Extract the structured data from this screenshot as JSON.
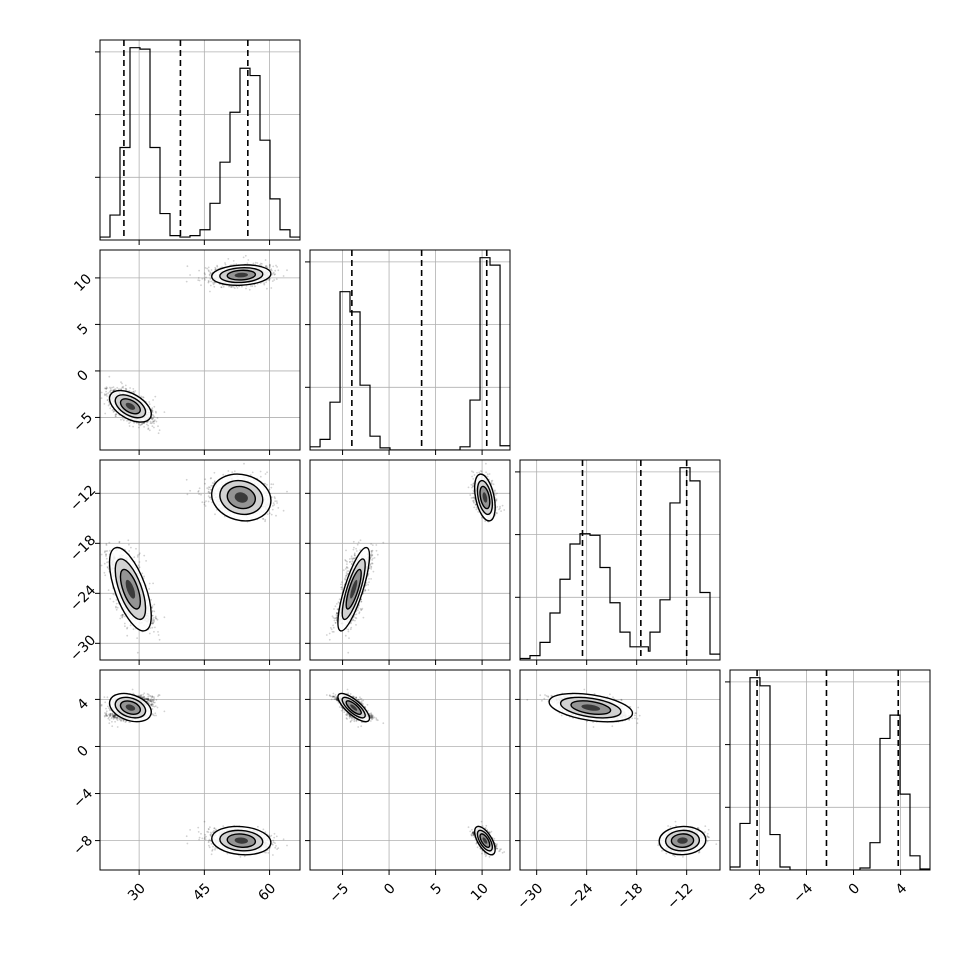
{
  "chart_data": {
    "type": "corner",
    "grid": true,
    "colors": {
      "density": "#000000",
      "quantile_line": "#000000",
      "grid": "#b0b0b0"
    },
    "parameters": [
      {
        "range": [
          21,
          67
        ],
        "ticks": [
          30,
          45,
          60
        ],
        "tick_labels": [
          "30",
          "45",
          "60"
        ],
        "quantiles": [
          26.5,
          39.5,
          55
        ]
      },
      {
        "range": [
          -8.5,
          13
        ],
        "ticks": [
          -5,
          0,
          5,
          10
        ],
        "tick_labels": [
          "−5",
          "0",
          "5",
          "10"
        ],
        "quantiles": [
          -4,
          3.5,
          10.5
        ]
      },
      {
        "range": [
          -32,
          -8
        ],
        "ticks": [
          -30,
          -24,
          -18,
          -12
        ],
        "tick_labels": [
          "−30",
          "−24",
          "−18",
          "−12"
        ],
        "quantiles": [
          -24.5,
          -17.5,
          -12
        ]
      },
      {
        "range": [
          -10.5,
          6.5
        ],
        "ticks": [
          -8,
          -4,
          0,
          4
        ],
        "tick_labels": [
          "−8",
          "−4",
          "0",
          "4"
        ],
        "quantiles": [
          -8.2,
          -2.3,
          3.8
        ]
      }
    ],
    "modes": [
      {
        "weight": 0.55,
        "mean": [
          28.0,
          -3.8,
          -23.5,
          3.3
        ],
        "std": [
          2.4,
          0.85,
          2.5,
          0.6
        ]
      },
      {
        "weight": 0.45,
        "mean": [
          53.5,
          10.3,
          -12.5,
          -8.0
        ],
        "std": [
          3.4,
          0.55,
          1.4,
          0.6
        ]
      }
    ],
    "diag_panels": [
      {
        "param": 0,
        "bins": [
          21.0,
          23.3,
          25.6,
          27.9,
          30.2,
          32.5,
          34.8,
          37.1,
          39.4,
          41.7,
          44.0,
          46.3,
          48.6,
          50.9,
          53.2,
          55.5,
          57.8,
          60.1,
          62.4,
          64.7,
          67.0
        ],
        "counts": [
          2,
          17,
          63,
          131,
          130,
          63,
          18,
          3,
          2,
          3,
          7,
          25,
          53,
          87,
          117,
          112,
          68,
          28,
          7,
          2
        ]
      },
      {
        "param": 1,
        "bins": [
          -8.5,
          -7.42,
          -6.35,
          -5.27,
          -4.2,
          -3.12,
          -2.05,
          -0.97,
          0.1,
          1.18,
          2.25,
          3.33,
          4.4,
          5.48,
          6.55,
          7.63,
          8.7,
          9.78,
          10.85,
          11.93,
          13.0
        ],
        "counts": [
          3,
          10,
          45,
          149,
          130,
          61,
          13,
          2,
          0,
          0,
          0,
          0,
          0,
          0,
          0,
          3,
          47,
          181,
          174,
          4
        ]
      },
      {
        "param": 2,
        "bins": [
          -32.0,
          -30.8,
          -29.6,
          -28.4,
          -27.2,
          -26.0,
          -24.8,
          -23.6,
          -22.4,
          -21.2,
          -20.0,
          -18.8,
          -16.6,
          -16.4,
          -15.2,
          -14.0,
          -12.8,
          -11.6,
          -10.4,
          -9.2,
          -8.0
        ],
        "counts": [
          1,
          3,
          12,
          32,
          55,
          79,
          86,
          85,
          63,
          39,
          19,
          9,
          6,
          19,
          41,
          107,
          131,
          122,
          46,
          4
        ]
      },
      {
        "param": 3,
        "bins": [
          -10.5,
          -9.65,
          -8.8,
          -7.95,
          -7.1,
          -6.25,
          -5.4,
          -4.55,
          -3.7,
          -2.85,
          -2.0,
          -1.15,
          -0.3,
          0.55,
          1.4,
          2.25,
          3.1,
          3.95,
          4.8,
          5.65,
          6.5
        ],
        "counts": [
          3,
          46,
          190,
          182,
          35,
          3,
          0,
          0,
          0,
          0,
          0,
          0,
          0,
          2,
          27,
          130,
          153,
          75,
          14,
          1
        ]
      }
    ],
    "offdiag_panels": [
      {
        "x_param": 0,
        "y_param": 1
      },
      {
        "x_param": 0,
        "y_param": 2
      },
      {
        "x_param": 1,
        "y_param": 2
      },
      {
        "x_param": 0,
        "y_param": 3
      },
      {
        "x_param": 1,
        "y_param": 3
      },
      {
        "x_param": 2,
        "y_param": 3
      }
    ]
  }
}
